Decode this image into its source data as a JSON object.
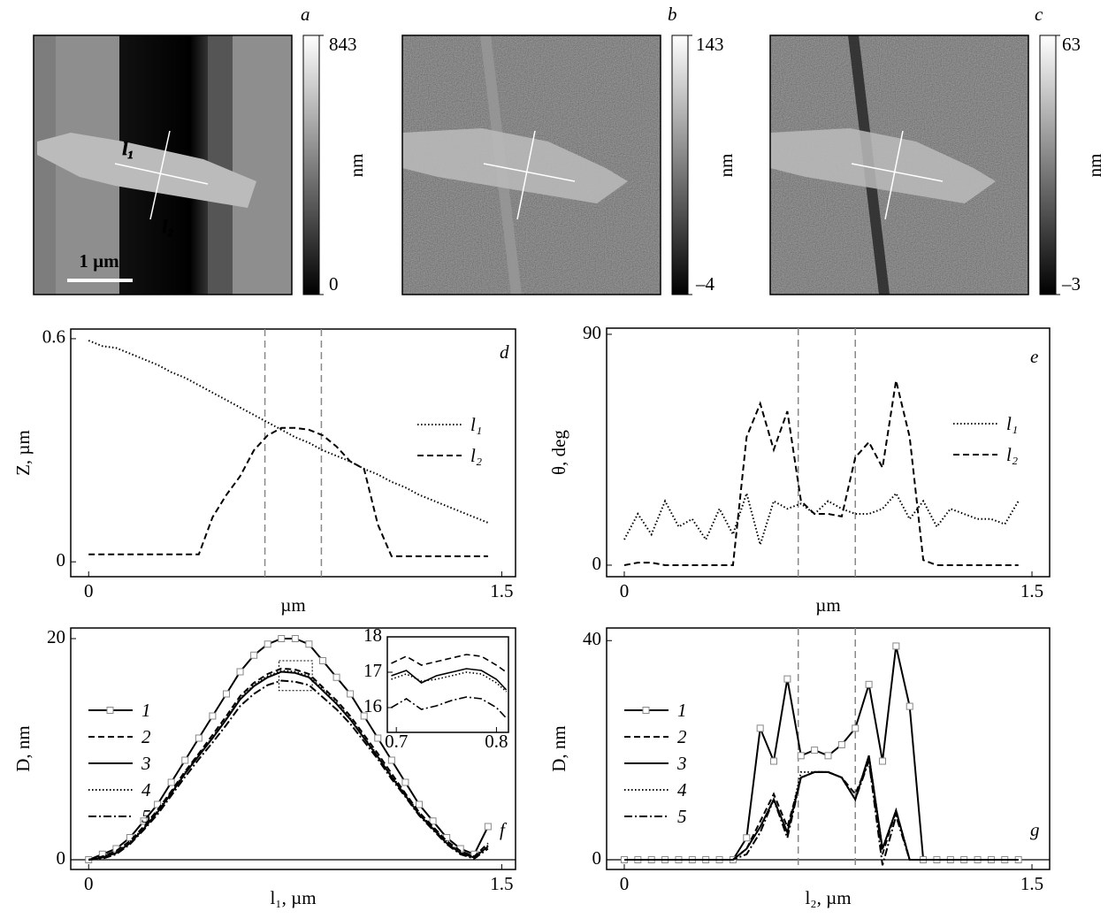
{
  "chart_data": [
    {
      "type": "image",
      "panel": "a",
      "clim": [
        0,
        843
      ],
      "cticks": [
        843,
        0
      ],
      "clabel": "nm",
      "annotations": [
        "l₁",
        "l₂",
        "1 µm"
      ]
    },
    {
      "type": "image",
      "panel": "b",
      "clim": [
        -4,
        143
      ],
      "cticks": [
        143,
        {
          "value": -4,
          "label": "–4"
        }
      ],
      "clabel": "nm"
    },
    {
      "type": "image",
      "panel": "c",
      "clim": [
        -3,
        63
      ],
      "cticks": [
        63,
        {
          "value": -3,
          "label": "–3"
        }
      ],
      "clabel": "nm"
    },
    {
      "type": "line",
      "panel": "d",
      "xlabel": "µm",
      "ylabel": "Z, µm",
      "xlim": [
        -0.065,
        1.55
      ],
      "ylim": [
        -0.04,
        0.626
      ],
      "xticks": [
        0,
        1.5
      ],
      "yticks": [
        0,
        0.6
      ],
      "vlines": [
        0.64,
        0.845
      ],
      "legend": "right",
      "x": [
        0,
        0.05,
        0.1,
        0.15,
        0.2,
        0.25,
        0.3,
        0.35,
        0.4,
        0.45,
        0.5,
        0.55,
        0.6,
        0.65,
        0.7,
        0.75,
        0.8,
        0.85,
        0.9,
        0.95,
        1.0,
        1.05,
        1.1,
        1.15,
        1.2,
        1.25,
        1.3,
        1.35,
        1.4,
        1.45
      ],
      "series": [
        {
          "name": "l₁",
          "color": "#000000",
          "line_style": "dotted",
          "values": [
            0.595,
            0.58,
            0.575,
            0.56,
            0.545,
            0.53,
            0.51,
            0.495,
            0.475,
            0.455,
            0.435,
            0.415,
            0.395,
            0.375,
            0.355,
            0.335,
            0.32,
            0.3,
            0.285,
            0.27,
            0.25,
            0.235,
            0.215,
            0.2,
            0.18,
            0.165,
            0.15,
            0.135,
            0.12,
            0.105
          ]
        },
        {
          "name": "l₂",
          "color": "#000000",
          "line_style": "dashed",
          "values": [
            0.02,
            0.02,
            0.02,
            0.02,
            0.02,
            0.02,
            0.02,
            0.02,
            0.02,
            0.12,
            0.18,
            0.23,
            0.3,
            0.34,
            0.36,
            0.36,
            0.355,
            0.34,
            0.31,
            0.27,
            0.25,
            0.1,
            0.015,
            0.015,
            0.015,
            0.015,
            0.015,
            0.015,
            0.015,
            0.015
          ]
        }
      ]
    },
    {
      "type": "line",
      "panel": "e",
      "xlabel": "µm",
      "ylabel": "θ, deg",
      "xlim": [
        -0.065,
        1.565
      ],
      "ylim": [
        -4.5,
        92.4
      ],
      "xticks": [
        0,
        1.5
      ],
      "yticks": [
        0,
        90
      ],
      "vlines": [
        0.64,
        0.85
      ],
      "legend": "right",
      "x": [
        0,
        0.05,
        0.1,
        0.15,
        0.2,
        0.25,
        0.3,
        0.35,
        0.4,
        0.45,
        0.5,
        0.55,
        0.6,
        0.65,
        0.7,
        0.75,
        0.8,
        0.85,
        0.9,
        0.95,
        1.0,
        1.05,
        1.1,
        1.15,
        1.2,
        1.25,
        1.3,
        1.35,
        1.4,
        1.45
      ],
      "series": [
        {
          "name": "l₁",
          "color": "#000000",
          "line_style": "dotted",
          "values": [
            10,
            20,
            12,
            25,
            15,
            18,
            10,
            22,
            12,
            28,
            8,
            25,
            22,
            24,
            20,
            25,
            22,
            20,
            20,
            22,
            28,
            18,
            25,
            15,
            22,
            20,
            18,
            18,
            16,
            25
          ]
        },
        {
          "name": "l₂",
          "color": "#000000",
          "line_style": "dashed",
          "values": [
            0,
            1,
            1,
            0,
            0,
            0,
            0,
            0,
            0,
            50,
            63,
            45,
            60,
            25,
            20,
            20,
            19,
            42,
            48,
            38,
            72,
            50,
            2,
            0,
            0,
            0,
            0,
            0,
            0,
            0
          ]
        }
      ]
    },
    {
      "type": "line",
      "panel": "f",
      "xlabel": "l₁, µm",
      "ylabel": "D, nm",
      "xlim": [
        -0.065,
        1.55
      ],
      "ylim": [
        -0.88,
        20.96
      ],
      "xticks": [
        0,
        1.5
      ],
      "yticks": [
        0,
        20
      ],
      "legend": "left",
      "zero_line": true,
      "x": [
        0,
        0.05,
        0.1,
        0.15,
        0.2,
        0.25,
        0.3,
        0.35,
        0.4,
        0.45,
        0.5,
        0.55,
        0.6,
        0.65,
        0.7,
        0.75,
        0.8,
        0.85,
        0.9,
        0.95,
        1.0,
        1.05,
        1.1,
        1.15,
        1.2,
        1.25,
        1.3,
        1.35,
        1.4,
        1.45
      ],
      "series": [
        {
          "name": "1",
          "color": "#000000",
          "line_style": "solid",
          "marker": "square",
          "marker_color": "#888888",
          "values": [
            0,
            0.5,
            1,
            2,
            3.5,
            5,
            7,
            9,
            11,
            13,
            15,
            17,
            18.5,
            19.5,
            20,
            20,
            19.5,
            18,
            16.5,
            15,
            13,
            11,
            9,
            7,
            5,
            3.5,
            2,
            1,
            0.5,
            3
          ]
        },
        {
          "name": "2",
          "color": "#000000",
          "line_style": "dashed",
          "values": [
            0,
            0.3,
            0.8,
            1.7,
            3,
            4.5,
            6.2,
            8,
            9.6,
            11.3,
            13,
            14.8,
            16,
            16.8,
            17.3,
            17.2,
            16.8,
            15.6,
            14.4,
            13,
            11.3,
            9.6,
            7.8,
            6,
            4.3,
            3,
            1.7,
            0.8,
            0.3,
            1.5
          ]
        },
        {
          "name": "3",
          "color": "#000000",
          "line_style": "solid",
          "values": [
            0,
            0.2,
            0.6,
            1.5,
            2.8,
            4.3,
            6,
            7.8,
            9.4,
            11,
            12.7,
            14.5,
            15.7,
            16.5,
            17,
            16.9,
            16.5,
            15.3,
            14.1,
            12.7,
            11,
            9.3,
            7.5,
            5.8,
            4.1,
            2.8,
            1.5,
            0.6,
            0.2,
            1.2
          ]
        },
        {
          "name": "4",
          "color": "#000000",
          "line_style": "dotted",
          "values": [
            0,
            0.3,
            0.7,
            1.6,
            2.9,
            4.4,
            6.1,
            7.9,
            9.5,
            11.1,
            12.8,
            14.6,
            15.8,
            16.6,
            17.1,
            17,
            16.6,
            15.4,
            14.2,
            12.8,
            11.1,
            9.4,
            7.6,
            5.9,
            4.2,
            2.9,
            1.6,
            0.7,
            0.3,
            1.3
          ]
        },
        {
          "name": "5",
          "color": "#000000",
          "line_style": "dashdot",
          "values": [
            0,
            0.1,
            0.5,
            1.4,
            2.7,
            4.1,
            5.8,
            7.5,
            9.1,
            10.6,
            12.2,
            13.9,
            15,
            15.8,
            16.2,
            16.1,
            15.8,
            14.7,
            13.6,
            12.3,
            10.7,
            9.1,
            7.3,
            5.7,
            4,
            2.7,
            1.4,
            0.5,
            0.1,
            1
          ]
        }
      ]
    },
    {
      "type": "line",
      "xlim": [
        0.691,
        0.812
      ],
      "ylim": [
        15.3,
        18
      ],
      "xticks": [
        0.7,
        0.8
      ],
      "yticks": [
        16,
        17,
        18
      ],
      "x": [
        0.695,
        0.71,
        0.725,
        0.74,
        0.755,
        0.77,
        0.785,
        0.8,
        0.81
      ],
      "series": [
        {
          "color": "#000000",
          "line_style": "dashed",
          "values": [
            17.25,
            17.45,
            17.2,
            17.3,
            17.4,
            17.5,
            17.45,
            17.2,
            17.0
          ]
        },
        {
          "color": "#000000",
          "line_style": "solid",
          "values": [
            16.9,
            17.05,
            16.7,
            16.9,
            17.0,
            17.1,
            17.05,
            16.8,
            16.5
          ]
        },
        {
          "color": "#000000",
          "line_style": "dotted",
          "values": [
            16.8,
            16.95,
            16.75,
            16.8,
            16.9,
            17.0,
            16.95,
            16.7,
            16.45
          ]
        },
        {
          "color": "#000000",
          "line_style": "dashdot",
          "values": [
            16.0,
            16.25,
            15.95,
            16.05,
            16.2,
            16.3,
            16.25,
            16.0,
            15.7
          ]
        }
      ]
    },
    {
      "type": "line",
      "panel": "g",
      "xlabel": "l₂, µm",
      "ylabel": "D, nm",
      "xlim": [
        -0.065,
        1.565
      ],
      "ylim": [
        -1.77,
        42.3
      ],
      "xticks": [
        0,
        1.5
      ],
      "yticks": [
        0,
        40
      ],
      "vlines": [
        0.64,
        0.85
      ],
      "legend": "left",
      "zero_line": true,
      "x": [
        0,
        0.05,
        0.1,
        0.15,
        0.2,
        0.25,
        0.3,
        0.35,
        0.4,
        0.45,
        0.5,
        0.55,
        0.6,
        0.65,
        0.7,
        0.75,
        0.8,
        0.85,
        0.9,
        0.95,
        1.0,
        1.05,
        1.1,
        1.15,
        1.2,
        1.25,
        1.3,
        1.35,
        1.4,
        1.45
      ],
      "series": [
        {
          "name": "1",
          "color": "#000000",
          "line_style": "solid",
          "marker": "square",
          "marker_color": "#888888",
          "values": [
            0,
            0,
            0,
            0,
            0,
            0,
            0,
            0,
            0,
            4,
            24,
            18,
            33,
            19,
            20,
            19,
            21,
            24,
            32,
            18,
            39,
            28,
            0,
            0,
            0,
            0,
            0,
            0,
            0,
            0
          ]
        },
        {
          "name": "2",
          "color": "#000000",
          "line_style": "dashed",
          "values": [
            0,
            0,
            0,
            0,
            0,
            0,
            0,
            0,
            0,
            2,
            7,
            12,
            6,
            15,
            16,
            16,
            15,
            12,
            18,
            1,
            9,
            0,
            0,
            0,
            0,
            0,
            0,
            0,
            0,
            0
          ]
        },
        {
          "name": "3",
          "color": "#000000",
          "line_style": "solid",
          "values": [
            0,
            0,
            0,
            0,
            0,
            0,
            0,
            0,
            0,
            2,
            6,
            11,
            5,
            15,
            16,
            16,
            15,
            11,
            19,
            2,
            9,
            0,
            0,
            0,
            0,
            0,
            0,
            0,
            0,
            0
          ]
        },
        {
          "name": "4",
          "color": "#000000",
          "line_style": "dotted",
          "values": [
            0,
            0,
            0,
            0,
            0,
            0,
            0,
            0,
            0,
            2,
            6,
            11,
            5,
            16,
            16,
            16,
            15,
            11,
            19,
            2,
            9,
            0,
            0,
            0,
            0,
            0,
            0,
            0,
            0,
            0
          ]
        },
        {
          "name": "5",
          "color": "#000000",
          "line_style": "dashdot",
          "values": [
            0,
            0,
            0,
            0,
            0,
            0,
            0,
            0,
            0,
            1,
            5,
            11,
            4,
            15,
            16,
            16,
            15,
            11,
            18,
            -1,
            8,
            0,
            0,
            0,
            0,
            0,
            0,
            0,
            0,
            0
          ]
        }
      ]
    }
  ]
}
